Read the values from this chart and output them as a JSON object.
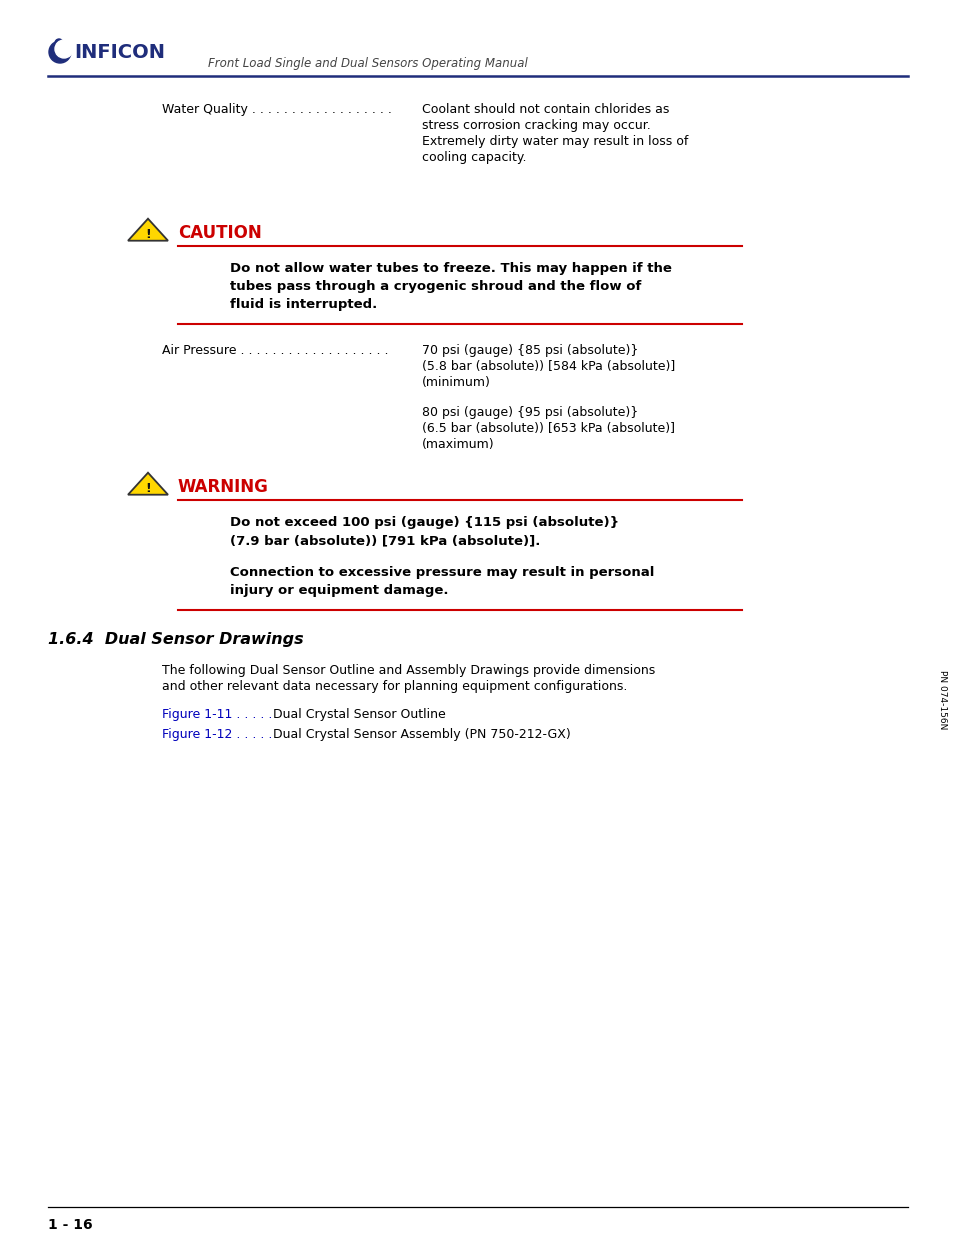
{
  "page_background": "#ffffff",
  "header_subtitle": "Front Load Single and Dual Sensors Operating Manual",
  "header_line_color": "#1f2d7b",
  "water_quality_label": "Water Quality . . . . . . . . . . . . . . . . . .",
  "water_quality_text_line1": "Coolant should not contain chlorides as",
  "water_quality_text_line2": "stress corrosion cracking may occur.",
  "water_quality_text_line3": "Extremely dirty water may result in loss of",
  "water_quality_text_line4": "cooling capacity.",
  "caution_title": "CAUTION",
  "caution_line1": "Do not allow water tubes to freeze. This may happen if the",
  "caution_line2": "tubes pass through a cryogenic shroud and the flow of",
  "caution_line3": "fluid is interrupted.",
  "air_pressure_label": "Air Pressure . . . . . . . . . . . . . . . . . . .",
  "air_min_line1": "70 psi (gauge) {85 psi (absolute)}",
  "air_min_line2": "(5.8 bar (absolute)) [584 kPa (absolute)]",
  "air_min_line3": "(minimum)",
  "air_max_line1": "80 psi (gauge) {95 psi (absolute)}",
  "air_max_line2": "(6.5 bar (absolute)) [653 kPa (absolute)]",
  "air_max_line3": "(maximum)",
  "warning_title": "WARNING",
  "warn_line1": "Do not exceed 100 psi (gauge) {115 psi (absolute)}",
  "warn_line2": "(7.9 bar (absolute)) [791 kPa (absolute)].",
  "warn_line3": "Connection to excessive pressure may result in personal",
  "warn_line4": "injury or equipment damage.",
  "section_title": "1.6.4  Dual Sensor Drawings",
  "section_line1": "The following Dual Sensor Outline and Assembly Drawings provide dimensions",
  "section_line2": "and other relevant data necessary for planning equipment configurations.",
  "figure1_ref": "Figure 1-11 . . . . .",
  "figure1_text": "  Dual Crystal Sensor Outline",
  "figure2_ref": "Figure 1-12 . . . . .",
  "figure2_text": "  Dual Crystal Sensor Assembly (PN 750-212-GX)",
  "page_number": "1 - 16",
  "side_text": "PN 074-156N",
  "red_color": "#cc0000",
  "navy_color": "#1f2d7b",
  "blue_link_color": "#0000bb",
  "black": "#000000",
  "alert_title_color": "#cc0000",
  "triangle_fill": "#FFD700",
  "triangle_edge": "#333333"
}
